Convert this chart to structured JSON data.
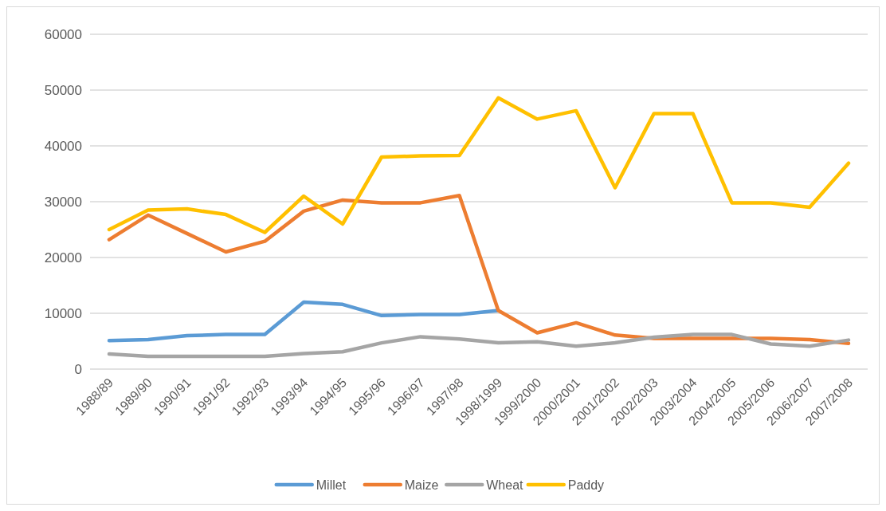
{
  "chart_data": {
    "type": "line",
    "categories": [
      "1988/89",
      "1989/90",
      "1990/91",
      "1991/92",
      "1992/93",
      "1993/94",
      "1994/95",
      "1995/96",
      "1996/97",
      "1997/98",
      "1998/1999",
      "1999/2000",
      "2000/2001",
      "2001/2002",
      "2002/2003",
      "2003/2004",
      "2004/2005",
      "2005/2006",
      "2006/2007",
      "2007/2008"
    ],
    "series": [
      {
        "name": "Millet",
        "color": "#5b9bd5",
        "values": [
          5100,
          5300,
          6000,
          6200,
          6200,
          12000,
          11600,
          9600,
          9800,
          9800,
          10500,
          null,
          null,
          null,
          null,
          null,
          null,
          null,
          null,
          null
        ]
      },
      {
        "name": "Maize",
        "color": "#ed7d31",
        "values": [
          23200,
          27600,
          24300,
          21000,
          22900,
          28300,
          30300,
          29800,
          29800,
          31100,
          10500,
          6500,
          8300,
          6100,
          5500,
          5500,
          5500,
          5500,
          5300,
          4600
        ]
      },
      {
        "name": "Wheat",
        "color": "#a5a5a5",
        "values": [
          2700,
          2300,
          2300,
          2300,
          2300,
          2800,
          3100,
          4700,
          5800,
          5400,
          4700,
          4900,
          4100,
          4700,
          5700,
          6200,
          6200,
          4500,
          4100,
          5200
        ]
      },
      {
        "name": "Paddy",
        "color": "#ffc000",
        "values": [
          25000,
          28500,
          28700,
          27700,
          24500,
          31000,
          26000,
          38000,
          38200,
          38300,
          48600,
          44800,
          46300,
          32500,
          45800,
          45800,
          29800,
          29800,
          29000,
          36900
        ]
      }
    ],
    "ylim": [
      0,
      60000
    ],
    "yticks": [
      0,
      10000,
      20000,
      30000,
      40000,
      50000,
      60000
    ],
    "grid": "y",
    "legend": "bottom",
    "marker": "none",
    "line_style": "solid"
  }
}
